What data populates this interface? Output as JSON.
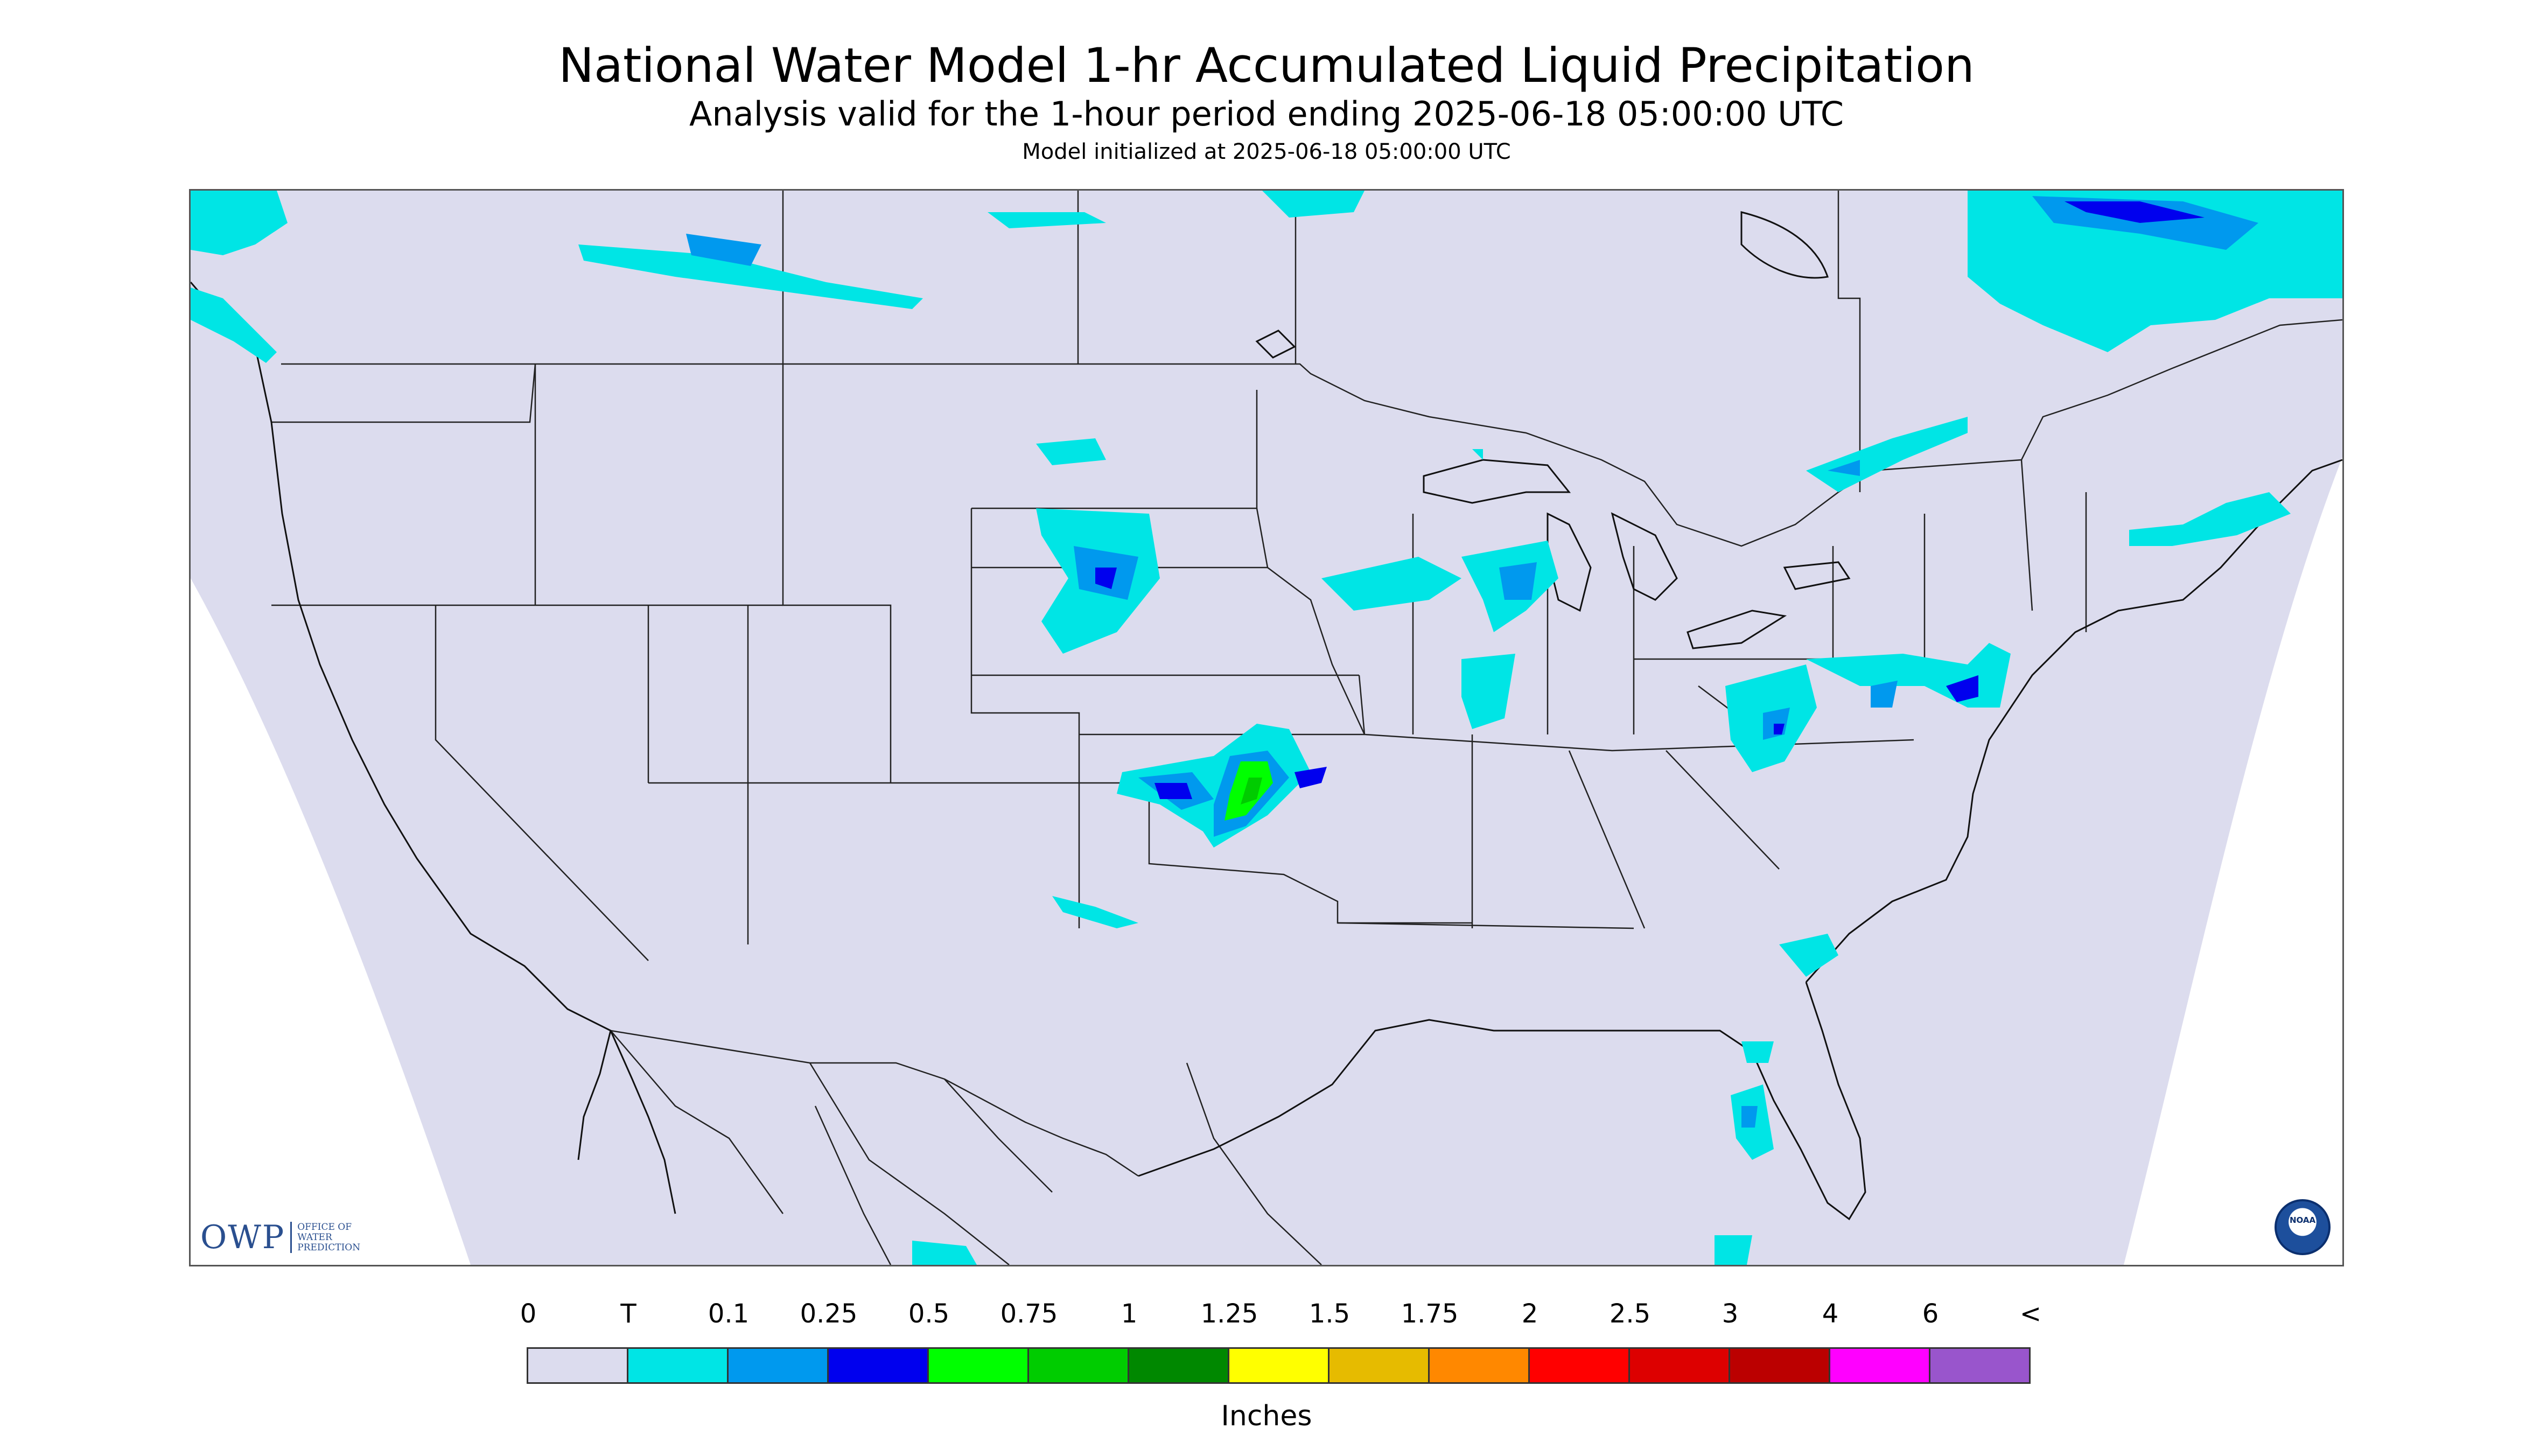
{
  "title": "National Water Model 1-hr Accumulated Liquid Precipitation",
  "subtitle": "Analysis valid for the 1-hour period ending 2025-06-18 05:00:00 UTC",
  "init_text": "Model initialized at 2025-06-18 05:00:00 UTC",
  "logos": {
    "owp_mark": "OWP",
    "owp_text_lines": [
      "OFFICE OF",
      "WATER",
      "PREDICTION"
    ],
    "noaa_label": "NOAA"
  },
  "legend": {
    "labels": [
      "0",
      "T",
      "0.1",
      "0.25",
      "0.5",
      "0.75",
      "1",
      "1.25",
      "1.5",
      "1.75",
      "2",
      "2.5",
      "3",
      "4",
      "6",
      "<"
    ],
    "colors": [
      "#dcdcee",
      "#00e5e5",
      "#0099ee",
      "#0000ee",
      "#00ff00",
      "#00cc00",
      "#008800",
      "#ffff00",
      "#e6bb00",
      "#ff8800",
      "#ff0000",
      "#dd0000",
      "#bb0000",
      "#ff00ff",
      "#9955cc"
    ],
    "units": "Inches"
  },
  "colors": {
    "no_precip": "#dcdcee",
    "background": "#ffffff",
    "boundary": "#222222"
  }
}
